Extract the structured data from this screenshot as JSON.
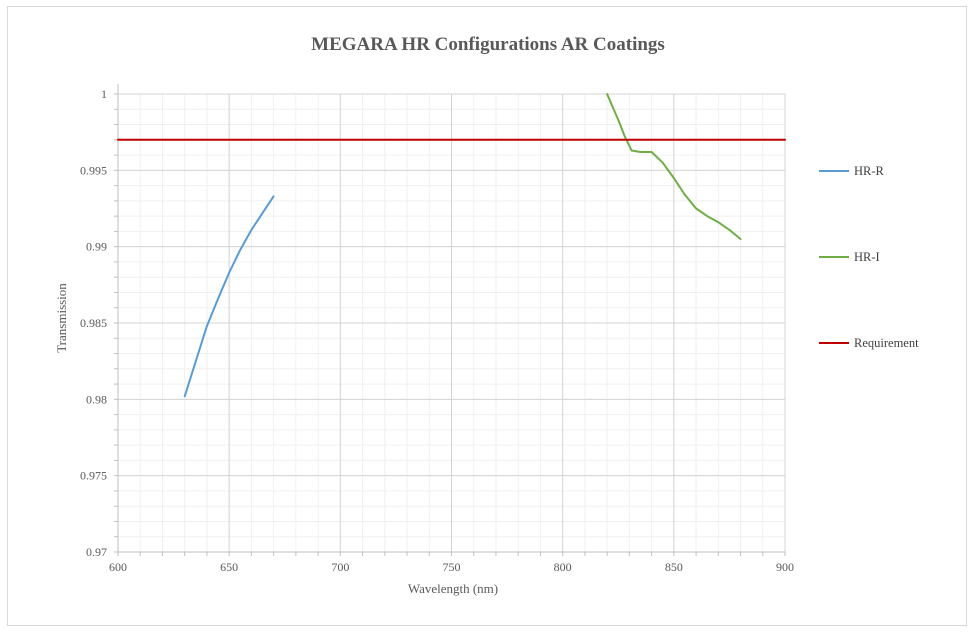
{
  "chart_data": {
    "type": "line",
    "title": "MEGARA HR Configurations AR Coatings",
    "xlabel": "Wavelength (nm)",
    "ylabel": "Transmission",
    "xlim": [
      600,
      900
    ],
    "ylim": [
      0.97,
      1.0
    ],
    "x_ticks": [
      "600",
      "650",
      "700",
      "750",
      "800",
      "850",
      "900"
    ],
    "y_ticks": [
      "0.97",
      "0.975",
      "0.98",
      "0.985",
      "0.99",
      "0.995",
      "1"
    ],
    "grid": true,
    "legend_position": "right",
    "series": [
      {
        "name": "HR-R",
        "color": "#5b9bd5",
        "points": [
          [
            630,
            0.9802
          ],
          [
            635,
            0.9825
          ],
          [
            640,
            0.9848
          ],
          [
            645,
            0.9866
          ],
          [
            650,
            0.9883
          ],
          [
            655,
            0.9898
          ],
          [
            660,
            0.9911
          ],
          [
            665,
            0.9922
          ],
          [
            670,
            0.9933
          ]
        ]
      },
      {
        "name": "HR-I",
        "color": "#70ad47",
        "points": [
          [
            820,
            1.0
          ],
          [
            825,
            0.9983
          ],
          [
            828,
            0.9972
          ],
          [
            831,
            0.9963
          ],
          [
            835,
            0.9962
          ],
          [
            840,
            0.9962
          ],
          [
            845,
            0.9955
          ],
          [
            850,
            0.9945
          ],
          [
            855,
            0.9934
          ],
          [
            860,
            0.9925
          ],
          [
            865,
            0.992
          ],
          [
            870,
            0.9916
          ],
          [
            875,
            0.9911
          ],
          [
            880,
            0.9905
          ]
        ]
      },
      {
        "name": "Requirement",
        "color": "#c00000",
        "points": [
          [
            600,
            0.997
          ],
          [
            900,
            0.997
          ]
        ]
      }
    ]
  }
}
